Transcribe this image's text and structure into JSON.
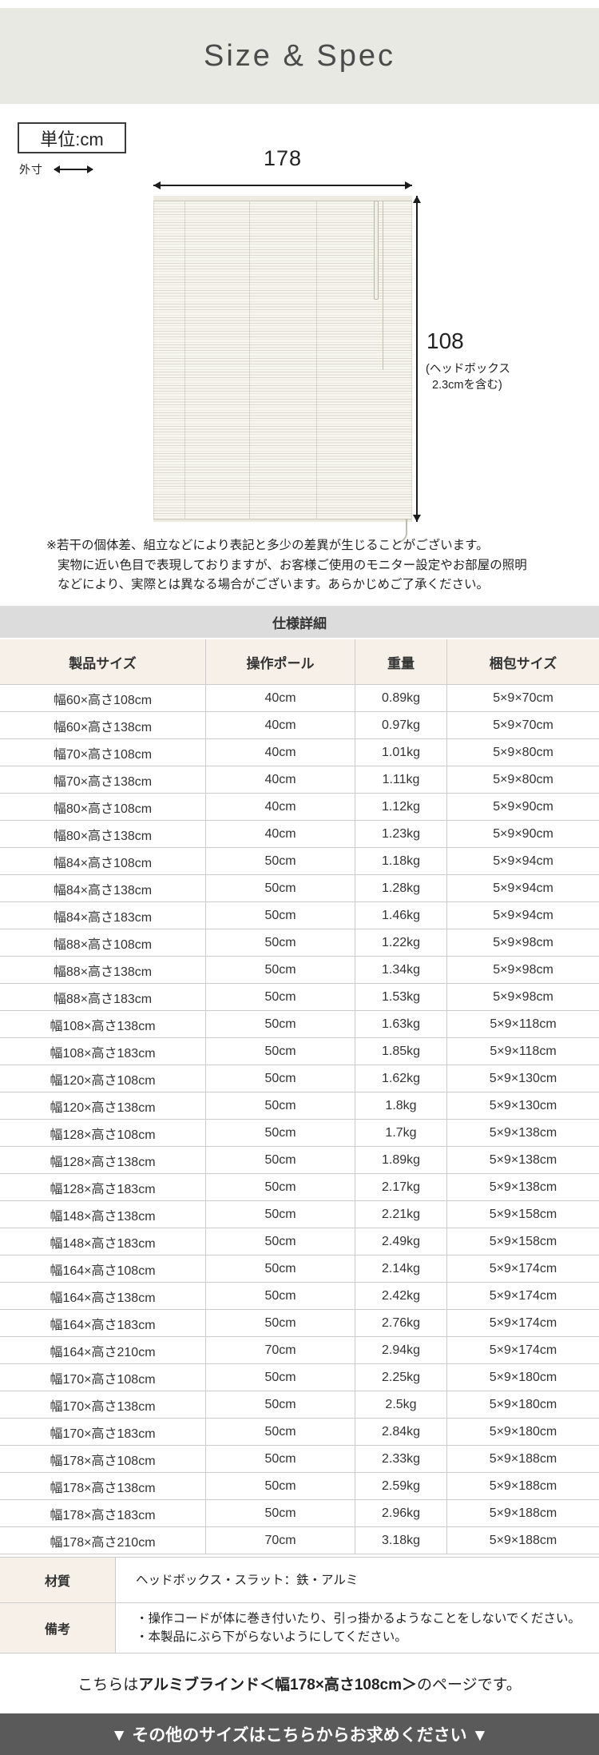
{
  "header": {
    "title": "Size & Spec"
  },
  "diagram": {
    "unit_label": "単位:cm",
    "outer_dim_label": "外寸",
    "width_value": "178",
    "height_value": "108",
    "height_note_lines": [
      "(ヘッドボックス",
      "2.3cmを含む)"
    ],
    "disclaimer_lines": [
      "※若干の個体差、組立などにより表記と多少の差異が生じることがございます。",
      "実物に近い色目で表現しておりますが、お客様ご使用のモニター設定やお部屋の照明",
      "などにより、実際とは異なる場合がございます。あらかじめご了承ください。"
    ]
  },
  "spec_table": {
    "section_title": "仕様詳細",
    "columns": [
      "製品サイズ",
      "操作ポール",
      "重量",
      "梱包サイズ"
    ],
    "rows": [
      [
        "幅60×高さ108cm",
        "40cm",
        "0.89kg",
        "5×9×70cm"
      ],
      [
        "幅60×高さ138cm",
        "40cm",
        "0.97kg",
        "5×9×70cm"
      ],
      [
        "幅70×高さ108cm",
        "40cm",
        "1.01kg",
        "5×9×80cm"
      ],
      [
        "幅70×高さ138cm",
        "40cm",
        "1.11kg",
        "5×9×80cm"
      ],
      [
        "幅80×高さ108cm",
        "40cm",
        "1.12kg",
        "5×9×90cm"
      ],
      [
        "幅80×高さ138cm",
        "40cm",
        "1.23kg",
        "5×9×90cm"
      ],
      [
        "幅84×高さ108cm",
        "50cm",
        "1.18kg",
        "5×9×94cm"
      ],
      [
        "幅84×高さ138cm",
        "50cm",
        "1.28kg",
        "5×9×94cm"
      ],
      [
        "幅84×高さ183cm",
        "50cm",
        "1.46kg",
        "5×9×94cm"
      ],
      [
        "幅88×高さ108cm",
        "50cm",
        "1.22kg",
        "5×9×98cm"
      ],
      [
        "幅88×高さ138cm",
        "50cm",
        "1.34kg",
        "5×9×98cm"
      ],
      [
        "幅88×高さ183cm",
        "50cm",
        "1.53kg",
        "5×9×98cm"
      ],
      [
        "幅108×高さ138cm",
        "50cm",
        "1.63kg",
        "5×9×118cm"
      ],
      [
        "幅108×高さ183cm",
        "50cm",
        "1.85kg",
        "5×9×118cm"
      ],
      [
        "幅120×高さ108cm",
        "50cm",
        "1.62kg",
        "5×9×130cm"
      ],
      [
        "幅120×高さ138cm",
        "50cm",
        "1.8kg",
        "5×9×130cm"
      ],
      [
        "幅128×高さ108cm",
        "50cm",
        "1.7kg",
        "5×9×138cm"
      ],
      [
        "幅128×高さ138cm",
        "50cm",
        "1.89kg",
        "5×9×138cm"
      ],
      [
        "幅128×高さ183cm",
        "50cm",
        "2.17kg",
        "5×9×138cm"
      ],
      [
        "幅148×高さ138cm",
        "50cm",
        "2.21kg",
        "5×9×158cm"
      ],
      [
        "幅148×高さ183cm",
        "50cm",
        "2.49kg",
        "5×9×158cm"
      ],
      [
        "幅164×高さ108cm",
        "50cm",
        "2.14kg",
        "5×9×174cm"
      ],
      [
        "幅164×高さ138cm",
        "50cm",
        "2.42kg",
        "5×9×174cm"
      ],
      [
        "幅164×高さ183cm",
        "50cm",
        "2.76kg",
        "5×9×174cm"
      ],
      [
        "幅164×高さ210cm",
        "70cm",
        "2.94kg",
        "5×9×174cm"
      ],
      [
        "幅170×高さ108cm",
        "50cm",
        "2.25kg",
        "5×9×180cm"
      ],
      [
        "幅170×高さ138cm",
        "50cm",
        "2.5kg",
        "5×9×180cm"
      ],
      [
        "幅170×高さ183cm",
        "50cm",
        "2.84kg",
        "5×9×180cm"
      ],
      [
        "幅178×高さ108cm",
        "50cm",
        "2.33kg",
        "5×9×188cm"
      ],
      [
        "幅178×高さ138cm",
        "50cm",
        "2.59kg",
        "5×9×188cm"
      ],
      [
        "幅178×高さ183cm",
        "50cm",
        "2.96kg",
        "5×9×188cm"
      ],
      [
        "幅178×高さ210cm",
        "70cm",
        "3.18kg",
        "5×9×188cm"
      ]
    ],
    "material_label": "材質",
    "material_value": "ヘッドボックス・スラット：鉄・アルミ",
    "notes_label": "備考",
    "notes_lines": [
      "・操作コードが体に巻き付いたり、引っ掛かるようなことをしないでください。",
      "・本製品にぶら下がらないようにしてください。"
    ]
  },
  "footer": {
    "page_note_prefix": "こちらは ",
    "page_note_bold": "アルミブラインド＜幅178×高さ108cm＞",
    "page_note_suffix": " のページです。",
    "cta_label": "▼ その他のサイズはこちらからお求めください ▼"
  },
  "colors": {
    "banner_bg": "#e9e9e3",
    "section_bar_bg": "#dcdcdc",
    "table_header_bg": "#f6f0e9",
    "table_border": "#cccccc",
    "cta_bar_bg": "#5a5a5a"
  }
}
